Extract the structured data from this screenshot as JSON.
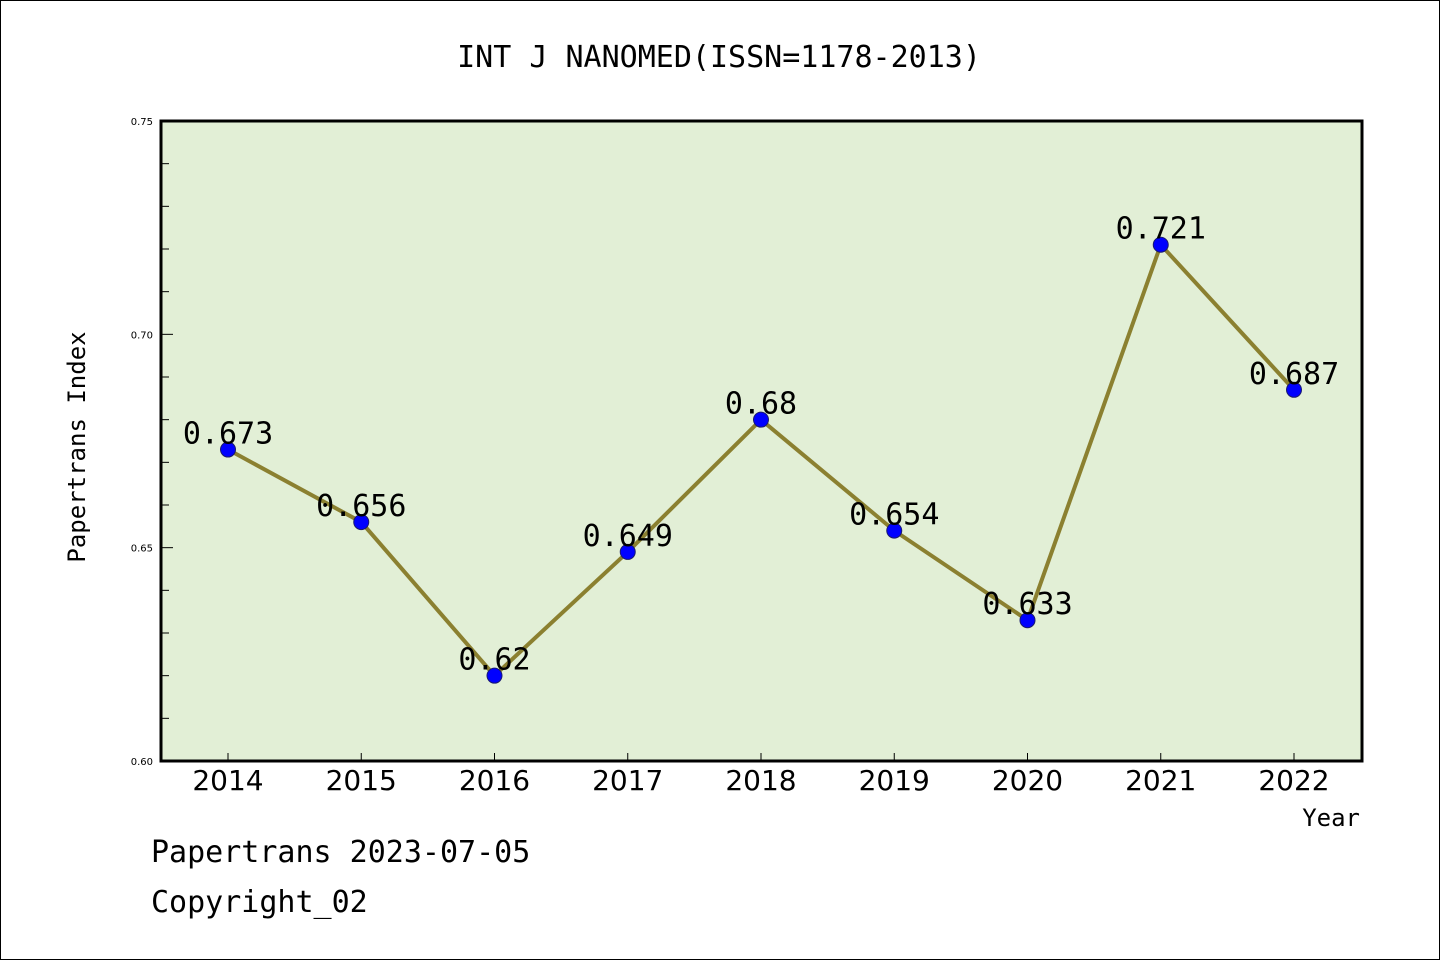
{
  "chart_data": {
    "type": "line",
    "title": "INT J NANOMED(ISSN=1178-2013)",
    "xlabel": "Year",
    "ylabel": "Papertrans Index",
    "categories": [
      "2014",
      "2015",
      "2016",
      "2017",
      "2018",
      "2019",
      "2020",
      "2021",
      "2022"
    ],
    "series": [
      {
        "values": [
          0.673,
          0.656,
          0.62,
          0.649,
          0.68,
          0.654,
          0.633,
          0.721,
          0.687
        ],
        "labels": [
          "0.673",
          "0.656",
          "0.62",
          "0.649",
          "0.68",
          "0.654",
          "0.633",
          "0.721",
          "0.687"
        ]
      }
    ],
    "ylim": [
      0.6,
      0.75
    ],
    "yticks": [
      "0.60",
      "0.65",
      "0.70",
      "0.75"
    ],
    "grid": false,
    "colors": {
      "plot_background": "#e2efd6",
      "line": "#8b8030",
      "marker": "#0000ff"
    }
  },
  "footer": {
    "line1": "Papertrans 2023-07-05",
    "line2": "Copyright_02"
  }
}
